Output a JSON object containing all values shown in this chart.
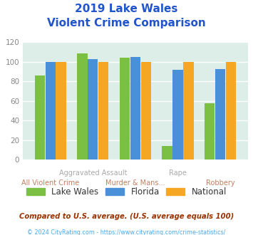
{
  "title_line1": "2019 Lake Wales",
  "title_line2": "Violent Crime Comparison",
  "lake_wales": [
    86,
    109,
    104,
    14,
    58
  ],
  "florida": [
    100,
    103,
    105,
    92,
    93
  ],
  "national": [
    100,
    100,
    100,
    100,
    100
  ],
  "bar_color_lw": "#7bc043",
  "bar_color_fl": "#4a90d9",
  "bar_color_nat": "#f5a623",
  "bg_color": "#ddeee8",
  "title_color": "#2255cc",
  "xlabel_top_color": "#aaaaaa",
  "xlabel_bot_color": "#c08060",
  "tick_color": "#888888",
  "legend_lw": "Lake Wales",
  "legend_fl": "Florida",
  "legend_nat": "National",
  "footnote1": "Compared to U.S. average. (U.S. average equals 100)",
  "footnote2": "© 2024 CityRating.com - https://www.cityrating.com/crime-statistics/",
  "footnote2_color": "#4da6e8",
  "ylim": [
    0,
    120
  ],
  "yticks": [
    0,
    20,
    40,
    60,
    80,
    100,
    120
  ],
  "top_labels": {
    "1": "Aggravated Assault",
    "3": "Rape"
  },
  "bot_labels": {
    "0": "All Violent Crime",
    "2": "Murder & Mans...",
    "4": "Robbery"
  }
}
